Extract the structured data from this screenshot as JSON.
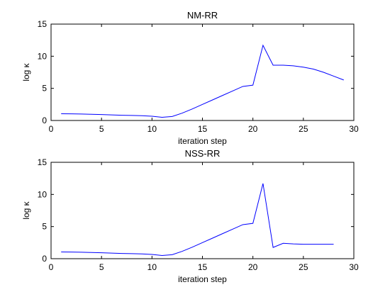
{
  "chart_data": [
    {
      "type": "line",
      "title": "NM-RR",
      "xlabel": "iteration step",
      "ylabel": "log κ",
      "xlim": [
        0,
        30
      ],
      "ylim": [
        0,
        15
      ],
      "xticks": [
        0,
        5,
        10,
        15,
        20,
        25,
        30
      ],
      "yticks": [
        0,
        5,
        10,
        15
      ],
      "grid": false,
      "series": [
        {
          "color": "#0000ff",
          "x": [
            1,
            2,
            3,
            4,
            5,
            6,
            7,
            8,
            9,
            10,
            11,
            12,
            13,
            14,
            15,
            16,
            17,
            18,
            19,
            20,
            21,
            22,
            23,
            24,
            25,
            26,
            27,
            28,
            29
          ],
          "y": [
            1.05,
            1.03,
            1.0,
            0.97,
            0.92,
            0.87,
            0.82,
            0.78,
            0.74,
            0.66,
            0.5,
            0.62,
            1.15,
            1.8,
            2.5,
            3.2,
            3.9,
            4.6,
            5.3,
            5.5,
            11.7,
            8.6,
            8.6,
            8.5,
            8.3,
            8.0,
            7.5,
            6.9,
            6.3
          ]
        }
      ]
    },
    {
      "type": "line",
      "title": "NSS-RR",
      "xlabel": "iteration step",
      "ylabel": "log κ",
      "xlim": [
        0,
        30
      ],
      "ylim": [
        0,
        15
      ],
      "xticks": [
        0,
        5,
        10,
        15,
        20,
        25,
        30
      ],
      "yticks": [
        0,
        5,
        10,
        15
      ],
      "grid": false,
      "series": [
        {
          "color": "#0000ff",
          "x": [
            1,
            2,
            3,
            4,
            5,
            6,
            7,
            8,
            9,
            10,
            11,
            12,
            13,
            14,
            15,
            16,
            17,
            18,
            19,
            20,
            21,
            22,
            23,
            24,
            25,
            26,
            27,
            28
          ],
          "y": [
            1.05,
            1.03,
            1.0,
            0.97,
            0.92,
            0.87,
            0.82,
            0.78,
            0.74,
            0.66,
            0.5,
            0.62,
            1.15,
            1.8,
            2.5,
            3.2,
            3.9,
            4.6,
            5.3,
            5.5,
            11.7,
            1.75,
            2.4,
            2.3,
            2.25,
            2.25,
            2.25,
            2.25
          ]
        }
      ]
    }
  ]
}
